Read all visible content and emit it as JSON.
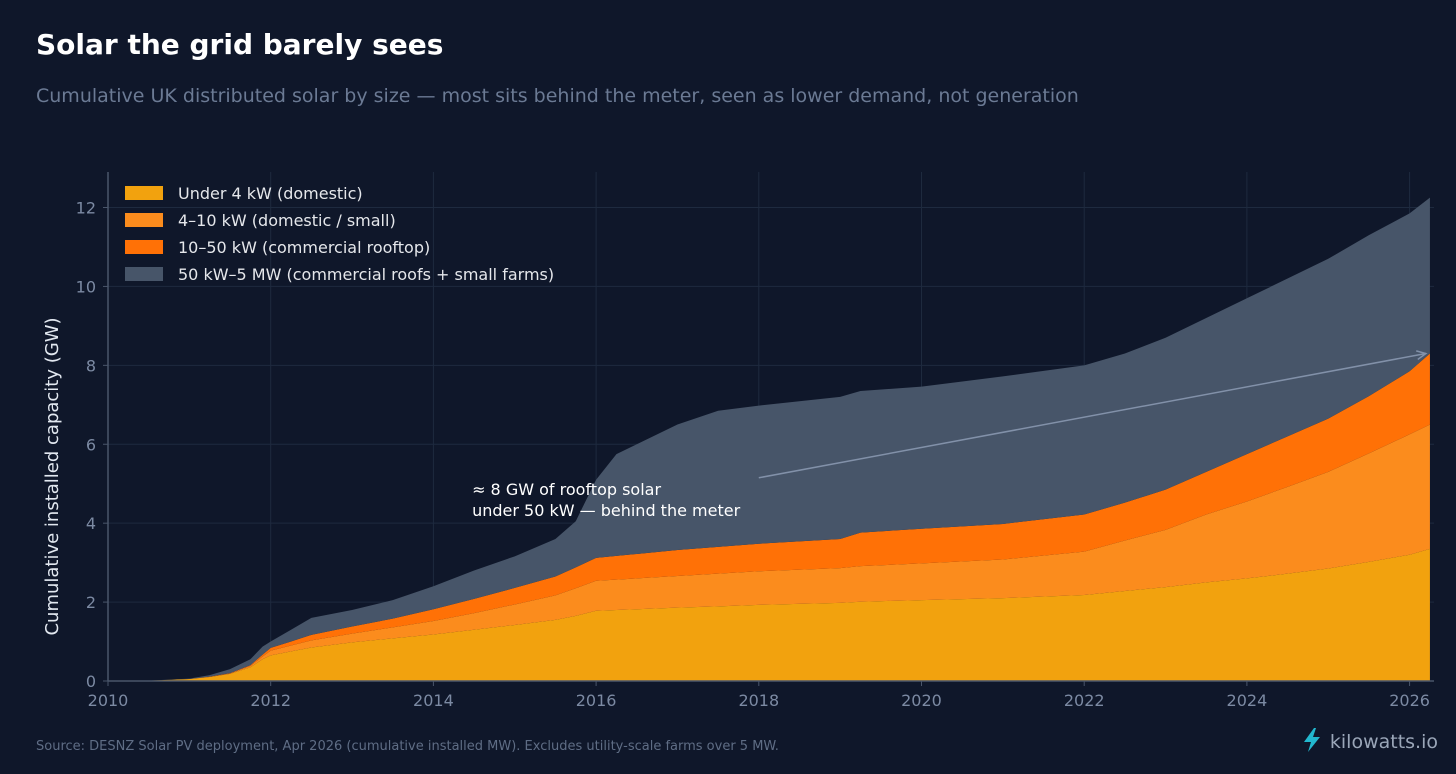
{
  "header": {
    "title": "Solar the grid barely sees",
    "subtitle": "Cumulative UK distributed solar by size — most sits behind the meter, seen as lower demand, not generation"
  },
  "footer": {
    "source": "Source: DESNZ Solar PV deployment, Apr 2026 (cumulative installed MW). Excludes utility-scale farms over 5 MW.",
    "brand": "kilowatts.io",
    "brand_icon": "lightning-bolt-icon",
    "brand_icon_color": "#22b8cf"
  },
  "chart_data": {
    "type": "area",
    "stacked": true,
    "title": "",
    "xlabel": "",
    "ylabel": "Cumulative installed capacity (GW)",
    "xlim": [
      2010,
      2026.3
    ],
    "ylim": [
      0,
      12.9
    ],
    "xticks": [
      2010,
      2012,
      2014,
      2016,
      2018,
      2020,
      2022,
      2024,
      2026
    ],
    "yticks": [
      0,
      2,
      4,
      6,
      8,
      10,
      12
    ],
    "grid": true,
    "legend_position": "top-left",
    "x": [
      2010,
      2010.5,
      2011,
      2011.25,
      2011.5,
      2011.75,
      2011.9,
      2012,
      2012.25,
      2012.5,
      2013,
      2013.5,
      2014,
      2014.5,
      2015,
      2015.5,
      2015.75,
      2016,
      2016.25,
      2016.5,
      2017,
      2017.5,
      2018,
      2019,
      2019.25,
      2020,
      2021,
      2022,
      2022.5,
      2023,
      2023.5,
      2024,
      2024.5,
      2025,
      2025.5,
      2026,
      2026.25
    ],
    "series": [
      {
        "name": "Under 4 kW (domestic)",
        "color": "#f2a20e",
        "values": [
          0,
          0.01,
          0.05,
          0.1,
          0.18,
          0.35,
          0.55,
          0.65,
          0.75,
          0.85,
          0.98,
          1.08,
          1.18,
          1.3,
          1.42,
          1.55,
          1.65,
          1.78,
          1.8,
          1.82,
          1.86,
          1.89,
          1.93,
          1.98,
          2.01,
          2.05,
          2.1,
          2.18,
          2.28,
          2.38,
          2.5,
          2.6,
          2.72,
          2.85,
          3.02,
          3.2,
          3.35
        ]
      },
      {
        "name": "4–10 kW (domestic / small)",
        "color": "#fb8c1d",
        "values": [
          0,
          0,
          0,
          0,
          0.01,
          0.03,
          0.07,
          0.12,
          0.15,
          0.18,
          0.22,
          0.28,
          0.34,
          0.42,
          0.52,
          0.62,
          0.7,
          0.76,
          0.77,
          0.78,
          0.8,
          0.83,
          0.85,
          0.88,
          0.9,
          0.93,
          0.98,
          1.1,
          1.28,
          1.45,
          1.72,
          1.95,
          2.2,
          2.45,
          2.75,
          3.05,
          3.15
        ]
      },
      {
        "name": "10–50 kW (commercial rooftop)",
        "color": "#ff7106",
        "values": [
          0,
          0,
          0,
          0.01,
          0.01,
          0.02,
          0.05,
          0.07,
          0.1,
          0.14,
          0.18,
          0.22,
          0.3,
          0.36,
          0.42,
          0.48,
          0.53,
          0.58,
          0.6,
          0.62,
          0.66,
          0.68,
          0.7,
          0.74,
          0.85,
          0.88,
          0.9,
          0.94,
          0.96,
          1.02,
          1.08,
          1.2,
          1.28,
          1.35,
          1.45,
          1.6,
          1.8
        ]
      },
      {
        "name": "50 kW–5 MW (commercial roofs + small farms)",
        "color": "#475569",
        "values": [
          0,
          0,
          0.01,
          0.04,
          0.1,
          0.15,
          0.2,
          0.16,
          0.3,
          0.43,
          0.42,
          0.47,
          0.58,
          0.72,
          0.8,
          0.95,
          1.17,
          1.98,
          2.58,
          2.78,
          3.18,
          3.45,
          3.5,
          3.6,
          3.59,
          3.6,
          3.74,
          3.78,
          3.78,
          3.85,
          3.9,
          3.95,
          4.0,
          4.05,
          4.08,
          4.0,
          3.95
        ]
      }
    ],
    "annotation": {
      "text_lines": [
        "≈ 8 GW of rooftop solar",
        "under 50 kW — behind the meter"
      ],
      "arrow_from": [
        2018,
        5.15
      ],
      "arrow_to": [
        2026.2,
        8.3
      ],
      "text_anchor": [
        2014.5,
        4.8
      ]
    },
    "colors": {
      "grid": "#1e2a3f",
      "axis": "#4a566b",
      "tick_text": "#7c8aa3",
      "ylabel_text": "#e2e8f0",
      "legend_text": "#e5e7eb",
      "annotation_text": "#ffffff",
      "arrow": "#8291a9"
    }
  }
}
